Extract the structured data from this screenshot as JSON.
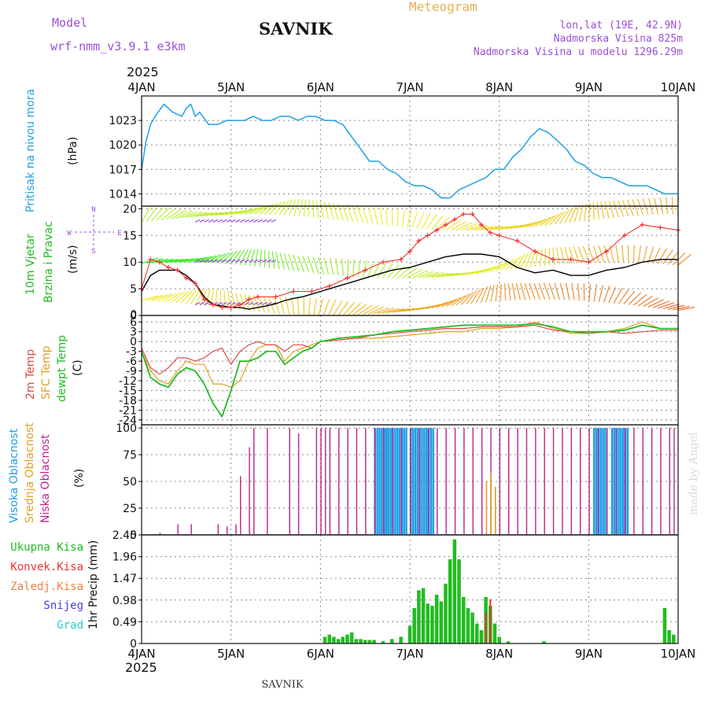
{
  "header": {
    "model_label": "Model",
    "model_name": "wrf-nmm_v3.9.1 e3km",
    "station": "SAVNIK",
    "chart_kind": "Meteogram",
    "coords": "lon,lat (19E, 42.9N)",
    "altitude": "Nadmorska Visina 825m",
    "model_altitude": "Nadmorska Visina u modelu 1296.29m",
    "year": "2025",
    "footer_station": "SAVNIK",
    "watermark": "made by Angel"
  },
  "colors": {
    "pressure": "#1ea0e6",
    "temp2m": "#e04a4a",
    "sfc": "#e0a020",
    "dewpt": "#22bb22",
    "high_cloud": "#1ea0e6",
    "mid_cloud": "#e0a020",
    "low_cloud": "#c0208a",
    "wind_speed": "#000000",
    "gust": "#ee3333",
    "purple": "#9b4fd6",
    "grid": "#888888"
  },
  "chart_data": [
    {
      "panel": "pressure",
      "type": "line",
      "ylabel_name": "Pritisak na nivou mora",
      "ylabel_unit": "(hPa)",
      "ylim": [
        1012.5,
        1026.0
      ],
      "yticks": [
        1014,
        1017,
        1020,
        1023
      ],
      "x_day": [
        0,
        0.05,
        0.1,
        0.15,
        0.25,
        0.35,
        0.45,
        0.5,
        0.55,
        0.6,
        0.65,
        0.75,
        0.85,
        0.95,
        1.05,
        1.15,
        1.25,
        1.35,
        1.45,
        1.55,
        1.65,
        1.75,
        1.85,
        1.95,
        2.05,
        2.15,
        2.25,
        2.35,
        2.45,
        2.55,
        2.65,
        2.75,
        2.85,
        2.95,
        3.05,
        3.15,
        3.25,
        3.35,
        3.45,
        3.55,
        3.65,
        3.75,
        3.85,
        3.95,
        4.05,
        4.15,
        4.25,
        4.35,
        4.45,
        4.55,
        4.65,
        4.75,
        4.85,
        4.95,
        5.05,
        5.15,
        5.25,
        5.35,
        5.45,
        5.55,
        5.65,
        5.75,
        5.85,
        5.95,
        6.0
      ],
      "y": [
        1017,
        1020.5,
        1022.5,
        1023.5,
        1025,
        1024,
        1023.5,
        1024.5,
        1025,
        1023.5,
        1024,
        1022.5,
        1022.5,
        1023,
        1023,
        1023,
        1023.5,
        1023,
        1023,
        1023.5,
        1023.5,
        1023,
        1023.5,
        1023.5,
        1023,
        1023,
        1022.5,
        1021,
        1019.5,
        1018,
        1018,
        1017,
        1016.5,
        1015.5,
        1015,
        1015,
        1014.5,
        1013.5,
        1013.5,
        1014.5,
        1015,
        1015.5,
        1016,
        1017,
        1017,
        1018.5,
        1019.5,
        1021,
        1022,
        1021.5,
        1020.5,
        1019.5,
        1018,
        1017.5,
        1016.5,
        1016,
        1016,
        1015.5,
        1015,
        1015,
        1015,
        1014.5,
        1014,
        1014,
        1014
      ]
    },
    {
      "panel": "wind",
      "type": "line",
      "ylabel_name": "10m Vjetar",
      "ylabel_sub": "Brzina i Pravac",
      "ylabel_unit": "(m/s)",
      "compass_n": "N",
      "compass_s": "S",
      "compass_w": "W",
      "compass_e": "E",
      "ylim": [
        0,
        20.5
      ],
      "yticks": [
        0,
        5,
        10,
        15,
        20
      ],
      "ytick_top_label": "0",
      "x_day": [
        0,
        0.1,
        0.2,
        0.3,
        0.4,
        0.5,
        0.6,
        0.7,
        0.8,
        0.9,
        1.0,
        1.1,
        1.2,
        1.3,
        1.4,
        1.5,
        1.6,
        1.7,
        1.8,
        1.9,
        2.0,
        2.2,
        2.4,
        2.6,
        2.8,
        3.0,
        3.2,
        3.4,
        3.6,
        3.8,
        4.0,
        4.2,
        4.4,
        4.6,
        4.8,
        5.0,
        5.2,
        5.4,
        5.6,
        5.8,
        6.0
      ],
      "speed": [
        4.5,
        7.5,
        8.5,
        8.5,
        8.5,
        7.5,
        6,
        3.5,
        2,
        1.8,
        1.5,
        1.5,
        1.2,
        1.5,
        1.8,
        2.2,
        2.8,
        3.2,
        3.5,
        4,
        4.5,
        5.5,
        6.5,
        7.5,
        8.5,
        9,
        10,
        11,
        11.5,
        11.5,
        11,
        9,
        8,
        8.5,
        7.5,
        7.5,
        8.5,
        9,
        10,
        10.5,
        10.5
      ],
      "gust_x": [
        0,
        0.1,
        0.2,
        0.3,
        0.4,
        0.5,
        0.6,
        0.7,
        0.8,
        0.9,
        1.0,
        1.1,
        1.2,
        1.3,
        1.5,
        1.7,
        1.9,
        2.1,
        2.3,
        2.5,
        2.7,
        2.9,
        3.0,
        3.1,
        3.2,
        3.3,
        3.4,
        3.5,
        3.6,
        3.7,
        3.8,
        3.9,
        4.0,
        4.2,
        4.4,
        4.6,
        4.8,
        5.0,
        5.2,
        5.4,
        5.6,
        5.8,
        6.0
      ],
      "gust": [
        5,
        10.5,
        10,
        9,
        8.5,
        7,
        6,
        3,
        2,
        1.5,
        1.5,
        2,
        3,
        3.5,
        3.5,
        4.5,
        4.5,
        5.5,
        7,
        8.5,
        10,
        10.5,
        12,
        14,
        15,
        16,
        17,
        18,
        19,
        19,
        17,
        15.5,
        15,
        14,
        12,
        10.5,
        10.5,
        10,
        12,
        15,
        17,
        16.5,
        16
      ]
    },
    {
      "panel": "temperature",
      "type": "line",
      "ylabel_t2m": "2m Temp",
      "ylabel_sfc": "SFC Temp",
      "ylabel_dewpt": "dewpt Temp",
      "ylabel_unit": "(C)",
      "ylim": [
        -25.5,
        8
      ],
      "yticks": [
        6,
        3,
        0,
        -3,
        -6,
        -9,
        -12,
        -15,
        -18,
        -21,
        -24
      ],
      "x_day": [
        0,
        0.1,
        0.2,
        0.3,
        0.4,
        0.5,
        0.6,
        0.7,
        0.8,
        0.9,
        1.0,
        1.1,
        1.2,
        1.3,
        1.4,
        1.5,
        1.6,
        1.7,
        1.8,
        1.9,
        2.0,
        2.2,
        2.4,
        2.6,
        2.8,
        3.0,
        3.2,
        3.4,
        3.6,
        3.8,
        4.0,
        4.2,
        4.4,
        4.6,
        4.8,
        5.0,
        5.2,
        5.4,
        5.6,
        5.8,
        6.0
      ],
      "t2m": [
        -2,
        -8,
        -10,
        -8,
        -5,
        -5,
        -6,
        -5,
        -3,
        -2,
        -7,
        -3,
        -1,
        0,
        -1,
        -1,
        -3,
        -1,
        -1,
        -2,
        0,
        0.5,
        1,
        2,
        2.5,
        3,
        3.5,
        4,
        4,
        4.5,
        4.5,
        4.5,
        5,
        3.5,
        3,
        2.5,
        3,
        2.5,
        3,
        3.5,
        3.5
      ],
      "sfc": [
        -3,
        -9,
        -12,
        -13,
        -9,
        -6,
        -7,
        -7,
        -13,
        -13,
        -14,
        -12,
        -6,
        -2,
        -1,
        -1,
        -6,
        -3,
        -2,
        -1,
        0,
        0.5,
        1,
        1,
        1.5,
        2,
        2.5,
        3,
        3,
        4,
        4,
        4.5,
        6,
        4,
        2.5,
        2.5,
        3,
        4,
        6,
        4,
        4
      ],
      "dewpt": [
        -3,
        -11,
        -13,
        -14,
        -10,
        -8,
        -9,
        -13,
        -19,
        -23,
        -15,
        -6,
        -6,
        -5,
        -3,
        -3,
        -7,
        -5,
        -3,
        -2,
        0,
        1,
        1.5,
        2,
        3,
        3.5,
        4,
        4.5,
        5,
        5,
        5,
        5,
        5.5,
        4.5,
        3,
        3,
        3,
        3.5,
        5,
        4,
        4
      ]
    },
    {
      "panel": "clouds",
      "type": "bar",
      "ylabel_high": "Visoka Oblacnost",
      "ylabel_mid": "Srednja Oblacnost",
      "ylabel_low": "Niska Oblacnost",
      "ylabel_unit": "(%)",
      "ylim": [
        0,
        103
      ],
      "yticks": [
        0,
        25,
        50,
        75,
        100
      ],
      "low_x": [
        0.2,
        0.4,
        0.55,
        0.85,
        0.95,
        1.05,
        1.1,
        1.2,
        1.25,
        1.4,
        1.65,
        1.75,
        1.95,
        2.0,
        2.05,
        2.1,
        2.2,
        2.3,
        2.4,
        2.5,
        2.6,
        2.7,
        2.8,
        2.9,
        3.0,
        3.1,
        3.2,
        3.3,
        3.4,
        3.5,
        3.6,
        3.7,
        3.8,
        3.9,
        4.0,
        4.1,
        4.2,
        4.3,
        4.4,
        4.5,
        4.6,
        4.7,
        4.8,
        4.9,
        5.0,
        5.1,
        5.2,
        5.3,
        5.4,
        5.5,
        5.6,
        5.7,
        5.8,
        5.9,
        5.95
      ],
      "low_y": [
        2,
        10,
        10,
        10,
        8,
        10,
        55,
        82,
        100,
        100,
        100,
        95,
        100,
        100,
        100,
        100,
        100,
        100,
        100,
        100,
        100,
        100,
        100,
        100,
        100,
        100,
        100,
        100,
        100,
        100,
        100,
        100,
        100,
        100,
        100,
        100,
        100,
        100,
        100,
        100,
        100,
        100,
        100,
        100,
        100,
        100,
        100,
        100,
        100,
        100,
        100,
        100,
        100,
        100,
        100
      ],
      "mid_x": [
        3.85,
        3.9,
        3.95
      ],
      "mid_y": [
        50,
        58,
        45
      ],
      "high_start": [
        2.6,
        2.7,
        3.0,
        5.05,
        5.25
      ],
      "high_end": [
        2.75,
        2.95,
        3.25,
        5.2,
        5.45
      ],
      "high_y": [
        100,
        100,
        100,
        100,
        100
      ]
    },
    {
      "panel": "precip",
      "type": "bar",
      "ylabel": "1hr Precip (mm)",
      "legend_total": "Ukupna Kisa",
      "legend_conv": "Konvek.Kisa",
      "legend_frozen": "Zaledj.Kisa",
      "legend_snow": "Snijeg",
      "legend_hail": "Grad",
      "ylim": [
        0,
        2.45
      ],
      "yticks": [
        0,
        0.49,
        0.98,
        1.47,
        1.96,
        2.45
      ],
      "x_day": [
        2.05,
        2.1,
        2.15,
        2.2,
        2.25,
        2.3,
        2.35,
        2.4,
        2.45,
        2.5,
        2.55,
        2.6,
        2.7,
        2.8,
        2.9,
        3.0,
        3.05,
        3.1,
        3.15,
        3.2,
        3.25,
        3.3,
        3.35,
        3.4,
        3.45,
        3.5,
        3.55,
        3.6,
        3.65,
        3.7,
        3.75,
        3.8,
        3.85,
        3.9,
        3.95,
        4.0,
        4.1,
        4.5,
        5.85,
        5.9,
        5.95
      ],
      "total": [
        0.15,
        0.2,
        0.15,
        0.1,
        0.15,
        0.2,
        0.25,
        0.1,
        0.1,
        0.08,
        0.08,
        0.08,
        0.05,
        0.1,
        0.15,
        0.4,
        0.8,
        1.2,
        1.25,
        0.9,
        0.85,
        1.1,
        0.95,
        1.35,
        1.9,
        2.35,
        1.9,
        1.05,
        0.8,
        0.7,
        0.45,
        0.3,
        1.05,
        0.85,
        0.45,
        0.15,
        0.05,
        0.05,
        0.8,
        0.3,
        0.2
      ],
      "conv": [
        0,
        0,
        0,
        0,
        0,
        0,
        0,
        0,
        0,
        0,
        0,
        0,
        0,
        0,
        0,
        0,
        0,
        0,
        0,
        0,
        0,
        0,
        0,
        0,
        0,
        0,
        0,
        0,
        0,
        0,
        0,
        0,
        0.7,
        1.0,
        0,
        0,
        0,
        0,
        0,
        0,
        0
      ],
      "xtick_labels": [
        "4JAN",
        "5JAN",
        "6JAN",
        "7JAN",
        "8JAN",
        "9JAN",
        "10JAN"
      ]
    }
  ]
}
